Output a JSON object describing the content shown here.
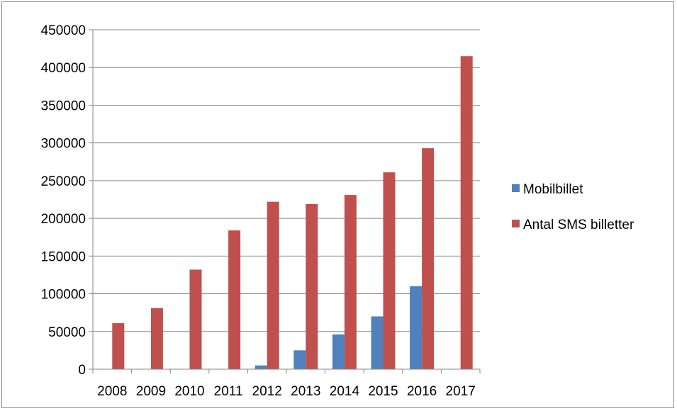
{
  "chart_data": {
    "type": "bar",
    "title": "",
    "xlabel": "",
    "ylabel": "",
    "categories": [
      "2008",
      "2009",
      "2010",
      "2011",
      "2012",
      "2013",
      "2014",
      "2015",
      "2016",
      "2017"
    ],
    "series": [
      {
        "name": "Mobilbillet",
        "color": "#4F81BD",
        "values": [
          0,
          0,
          0,
          0,
          5000,
          25000,
          46000,
          70000,
          110000,
          0
        ]
      },
      {
        "name": "Antal SMS billetter",
        "color": "#C0504D",
        "values": [
          61000,
          81000,
          132000,
          184000,
          222000,
          219000,
          231000,
          261000,
          293000,
          415000
        ]
      }
    ],
    "ylim": [
      0,
      450000
    ],
    "yticks": [
      0,
      50000,
      100000,
      150000,
      200000,
      250000,
      300000,
      350000,
      400000,
      450000
    ],
    "grid": "horizontal",
    "legend": "right"
  }
}
